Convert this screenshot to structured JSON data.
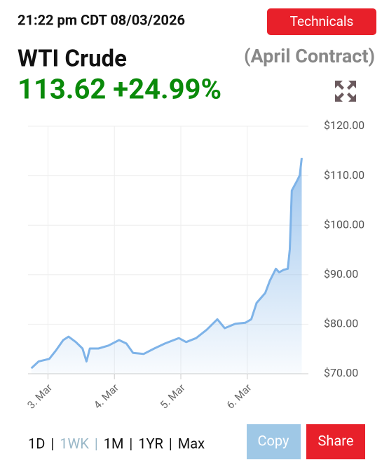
{
  "header": {
    "timestamp": "21:22 pm CDT 08/03/2026",
    "technicals": "Technicals",
    "name": "WTI Crude",
    "contract": "(April Contract)",
    "quote": "113.62 +24.99%"
  },
  "chart_data": {
    "type": "line",
    "color": "#7eb3e8",
    "grid": true,
    "x": [
      2.75,
      2.86,
      3.02,
      3.12,
      3.23,
      3.31,
      3.42,
      3.52,
      3.58,
      3.63,
      3.76,
      3.91,
      4.07,
      4.18,
      4.28,
      4.44,
      4.6,
      4.76,
      4.97,
      5.08,
      5.23,
      5.39,
      5.55,
      5.66,
      5.82,
      5.97,
      6.06,
      6.14,
      6.27,
      6.34,
      6.43,
      6.48,
      6.55,
      6.61,
      6.64,
      6.67,
      6.71,
      6.75,
      6.79,
      6.82
    ],
    "values": [
      71.1,
      72.5,
      73.0,
      74.7,
      76.8,
      77.5,
      76.4,
      75.1,
      72.5,
      75.1,
      75.1,
      75.7,
      76.8,
      76.1,
      74.2,
      74.0,
      75.1,
      76.1,
      77.2,
      76.4,
      77.2,
      78.9,
      81.0,
      79.2,
      80.1,
      80.3,
      81.0,
      84.3,
      86.3,
      88.8,
      91.2,
      90.5,
      91.0,
      91.2,
      95.2,
      107.0,
      108.0,
      109.0,
      110.1,
      113.6
    ],
    "xlim": [
      2.7,
      6.92
    ],
    "xticks": [
      {
        "value": 3,
        "label": "3. Mar"
      },
      {
        "value": 4,
        "label": "4. Mar"
      },
      {
        "value": 5,
        "label": "5. Mar"
      },
      {
        "value": 6,
        "label": "6. Mar"
      }
    ],
    "ylim": [
      70,
      120
    ],
    "yticks": [
      {
        "value": 70,
        "label": "$70.00"
      },
      {
        "value": 80,
        "label": "$80.00"
      },
      {
        "value": 90,
        "label": "$90.00"
      },
      {
        "value": 100,
        "label": "$100.00"
      },
      {
        "value": 110,
        "label": "$110.00"
      },
      {
        "value": 120,
        "label": "$120.00"
      }
    ]
  },
  "controls": {
    "ranges": [
      "1D",
      "1WK",
      "1M",
      "1YR",
      "Max"
    ],
    "active": 1,
    "separator": "|",
    "copy": "Copy",
    "share": "Share"
  }
}
